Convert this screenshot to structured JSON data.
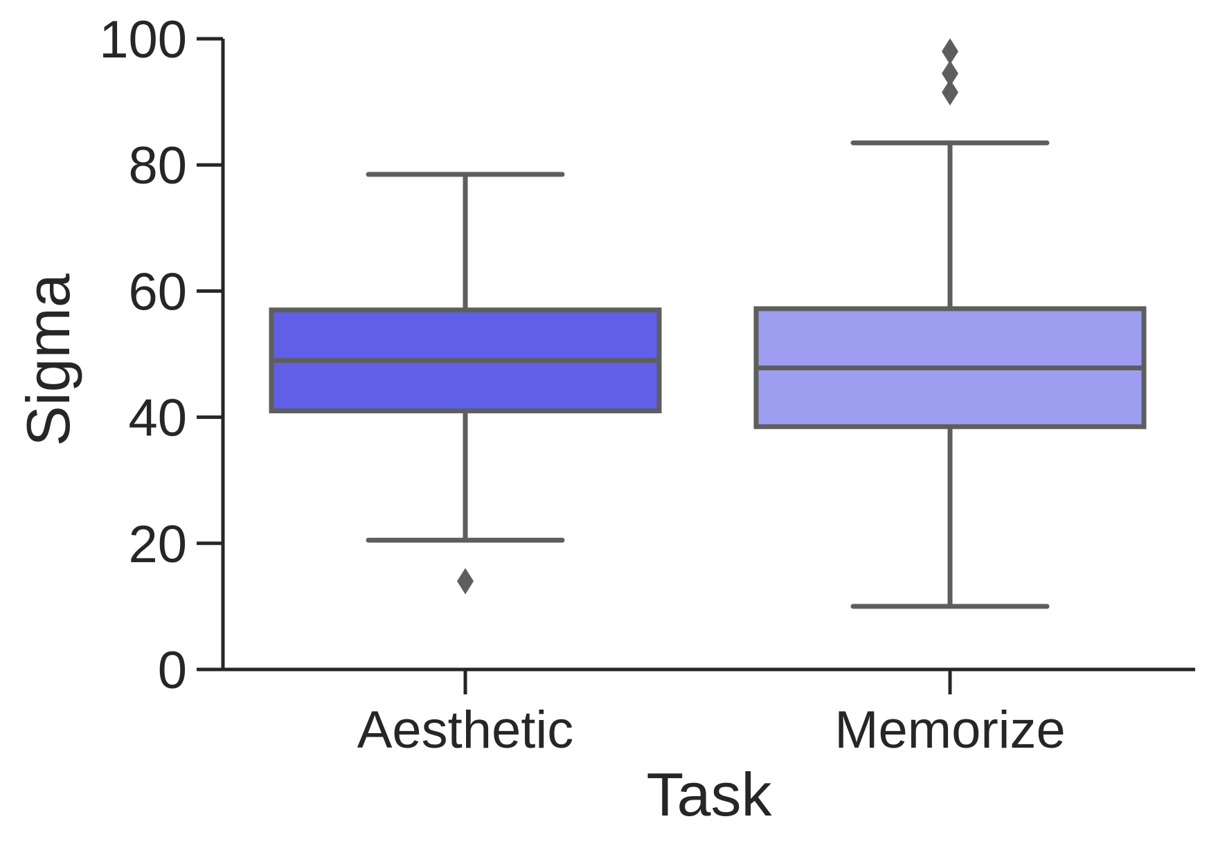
{
  "chart_data": {
    "type": "box",
    "xlabel": "Task",
    "ylabel": "Sigma",
    "ylim": [
      0,
      100
    ],
    "yticks": [
      0,
      20,
      40,
      60,
      80,
      100
    ],
    "ytick_labels": [
      "0",
      "20",
      "40",
      "60",
      "80",
      "100"
    ],
    "grid": false,
    "categories": [
      "Aesthetic",
      "Memorize"
    ],
    "boxes": [
      {
        "category": "Aesthetic",
        "whisker_low": 20.5,
        "q1": 41.0,
        "median": 49.0,
        "q3": 57.0,
        "whisker_high": 78.5,
        "outliers": [
          14.0
        ],
        "color": "#5F5FE8"
      },
      {
        "category": "Memorize",
        "whisker_low": 10.0,
        "q1": 38.5,
        "median": 47.8,
        "q3": 57.2,
        "whisker_high": 83.5,
        "outliers": [
          91.5,
          94.5,
          98.0
        ],
        "color": "#9E9EF0"
      }
    ],
    "edge_color": "#5e5e5e",
    "axis_color": "#262626"
  }
}
